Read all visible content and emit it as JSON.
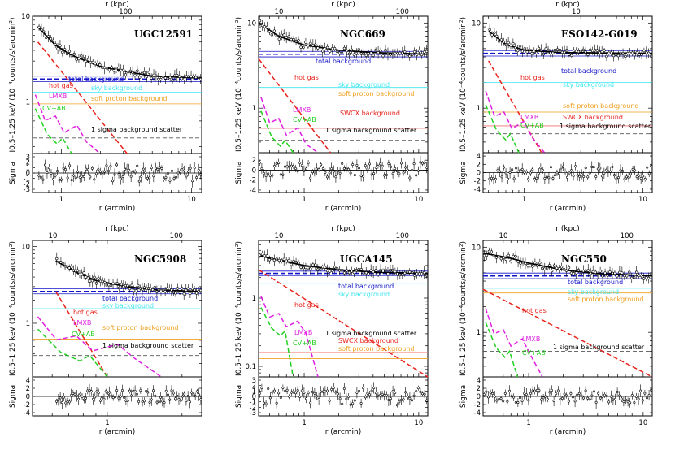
{
  "chart_data": [
    {
      "type": "scatter",
      "title": "UGC12591",
      "xlabel": "r (arcmin)",
      "top_xlabel": "r (kpc)",
      "ylabel": "I_{0.5-1.25 keV} (10^{-4} counts/s/arcmin^2)",
      "ylabel_display": "I0.5–1.25 keV (10⁻⁴counts/s/arcmin²)",
      "residual_ylabel": "Sigma",
      "xlim": [
        0.6,
        12
      ],
      "ylim": [
        0.25,
        10
      ],
      "x_ticks": [
        "1",
        "10"
      ],
      "y_ticks": [
        "10",
        "1"
      ],
      "top_ticks": [
        "100"
      ],
      "residual_ticks": [
        "3",
        "2",
        "1",
        "0",
        "-1",
        "-2",
        "-3"
      ],
      "residual_ylim": [
        -3.6,
        3.6
      ],
      "background_level": 1.85,
      "labels": {
        "total_background": "total background",
        "sky_background": "sky background",
        "soft_proton_background": "soft proton background",
        "hot_gas": "hot gas",
        "lmxb": "LMXB",
        "cv_ab": "CV+AB",
        "scatter": "1 sigma background scatter"
      },
      "components": {
        "total_background": 1.85,
        "sky_background": 1.3,
        "soft_proton_background": 0.95,
        "sigma_scatter": 0.38,
        "hot_gas": [
          [
            0.66,
            5.0
          ],
          [
            3.2,
            0.25
          ]
        ],
        "model_curve": [
          [
            0.66,
            7.5
          ],
          [
            0.9,
            4.6
          ],
          [
            1.2,
            3.5
          ],
          [
            2,
            2.6
          ],
          [
            3,
            2.3
          ],
          [
            5,
            2.0
          ],
          [
            12,
            1.9
          ]
        ]
      }
    },
    {
      "type": "scatter",
      "title": "NGC669",
      "xlabel": "r (arcmin)",
      "top_xlabel": "r (kpc)",
      "ylabel": "I_{0.5-1.25 keV} (10^{-4} counts/s/arcmin^2)",
      "ylabel_display": "I0.5–1.25 keV (10⁻⁴counts/s/arcmin²)",
      "residual_ylabel": "Sigma",
      "xlim": [
        0.4,
        12
      ],
      "ylim": [
        0.3,
        12
      ],
      "x_ticks": [
        "1",
        "10"
      ],
      "y_ticks": [
        "10",
        "1"
      ],
      "top_ticks": [
        "10",
        "100"
      ],
      "residual_ticks": [
        "2",
        "0",
        "-2",
        "-4"
      ],
      "residual_ylim": [
        -4.5,
        3.5
      ],
      "background_level": 4.3,
      "labels": {
        "total_background": "total background",
        "sky_background": "sky background",
        "soft_proton_background": "soft proton background",
        "hot_gas": "hot gas",
        "lmxb": "LMXB",
        "cv_ab": "CV+AB",
        "swcx_background": "SWCX background",
        "scatter": "1 sigma background scatter"
      },
      "components": {
        "total_background": 4.3,
        "sky_background": 1.75,
        "soft_proton_background": 1.35,
        "swcx_background": 0.58,
        "sigma_scatter": 0.42,
        "hot_gas": [
          [
            0.4,
            3.8
          ],
          [
            1.7,
            0.3
          ]
        ],
        "model_curve": [
          [
            0.4,
            10
          ],
          [
            0.6,
            7
          ],
          [
            1,
            5.5
          ],
          [
            2,
            4.8
          ],
          [
            4,
            4.5
          ],
          [
            12,
            4.3
          ]
        ]
      }
    },
    {
      "type": "scatter",
      "title": "ESO142-G019",
      "xlabel": "r (arcmin)",
      "top_xlabel": "r (kpc)",
      "ylabel": "I_{0.5-1.25 keV} (10^{-4} counts/s/arcmin^2)",
      "ylabel_display": "I0.5–1.25 keV (10⁻⁴counts/s/arcmin²)",
      "residual_ylabel": "Sigma",
      "xlim": [
        0.45,
        12
      ],
      "ylim": [
        0.3,
        12
      ],
      "x_ticks": [
        "1",
        "10"
      ],
      "y_ticks": [
        "10",
        "1"
      ],
      "top_ticks": [
        "10"
      ],
      "residual_ticks": [
        "4",
        "2",
        "0",
        "-2",
        "-4"
      ],
      "residual_ylim": [
        -4.8,
        4.8
      ],
      "background_level": 4.4,
      "labels": {
        "total_background": "total background",
        "sky_background": "sky background",
        "soft_proton_background": "soft proton background",
        "hot_gas": "hot gas",
        "lmxb": "LMXB",
        "cv_ab": "CV+AB",
        "swcx_background": "SWCX background",
        "scatter": "1 sigma background scatter"
      },
      "components": {
        "total_background": 4.4,
        "sky_background": 2.0,
        "soft_proton_background": 0.9,
        "swcx_background": 0.62,
        "sigma_scatter": 0.5,
        "hot_gas": [
          [
            0.5,
            3.6
          ],
          [
            1.4,
            0.3
          ]
        ],
        "model_curve": [
          [
            0.5,
            8
          ],
          [
            0.7,
            5.6
          ],
          [
            1,
            4.8
          ],
          [
            2,
            4.5
          ],
          [
            12,
            4.4
          ]
        ]
      }
    },
    {
      "type": "scatter",
      "title": "NGC5908",
      "xlabel": "r (arcmin)",
      "top_xlabel": "r (kpc)",
      "ylabel": "I_{0.5-1.25 keV} (10^{-4} counts/s/arcmin^2)",
      "ylabel_display": "I0.5–1.25 keV (10⁻⁴counts/s/arcmin²)",
      "residual_ylabel": "Sigma",
      "xlim": [
        0.5,
        2.4
      ],
      "ylim": [
        0.2,
        12
      ],
      "x_ticks": [
        "1"
      ],
      "y_ticks": [
        "10",
        "1"
      ],
      "top_ticks": [
        "10",
        "100"
      ],
      "residual_ticks": [
        "4",
        "2",
        "0",
        "-2",
        "-4"
      ],
      "residual_ylim": [
        -4.8,
        4.8
      ],
      "background_level": 2.6,
      "labels": {
        "total_background": "total background",
        "sky_background": "sky background",
        "soft_proton_background": "soft proton background",
        "hot_gas": "hot gas",
        "lmxb": "LMXB",
        "cv_ab": "CV+AB",
        "scatter": "1 sigma background scatter"
      },
      "components": {
        "total_background": 2.6,
        "sky_background": 1.55,
        "soft_proton_background": 0.62,
        "sigma_scatter": 0.38,
        "hot_gas": [
          [
            0.62,
            2.6
          ],
          [
            1.0,
            0.2
          ]
        ],
        "model_curve": [
          [
            0.62,
            6.5
          ],
          [
            0.75,
            4.6
          ],
          [
            0.9,
            3.6
          ],
          [
            1.2,
            3.0
          ],
          [
            1.6,
            2.7
          ],
          [
            2.4,
            2.6
          ]
        ]
      }
    },
    {
      "type": "scatter",
      "title": "UGCA145",
      "xlabel": "r (arcmin)",
      "top_xlabel": "r (kpc)",
      "ylabel": "I_{0.5-1.25 keV} (10^{-4} counts/s/arcmin^2)",
      "ylabel_display": "I0.5–1.25 keV (10⁻⁴counts/s/arcmin²)",
      "residual_ylabel": "Sigma",
      "xlim": [
        0.4,
        12
      ],
      "ylim": [
        0.07,
        7
      ],
      "x_ticks": [
        "1",
        "10"
      ],
      "y_ticks": [
        "1",
        "0.1"
      ],
      "top_ticks": [
        "10",
        "100"
      ],
      "residual_ticks": [
        "3",
        "2",
        "1",
        "0",
        "-1",
        "-2",
        "-3"
      ],
      "residual_ylim": [
        -3.6,
        3.6
      ],
      "background_level": 2.3,
      "labels": {
        "total_background": "total background",
        "sky_background": "sky background",
        "soft_proton_background": "soft proton background",
        "hot_gas": "hot gas",
        "lmxb": "LMXB",
        "cv_ab": "CV+AB",
        "swcx_background": "SWCX background",
        "scatter": "1 sigma background scatter"
      },
      "components": {
        "total_background": 2.3,
        "sky_background": 1.65,
        "soft_proton_background": 0.13,
        "swcx_background": 0.16,
        "sigma_scatter": 0.33,
        "hot_gas": [
          [
            0.4,
            2.6
          ],
          [
            12,
            0.07
          ]
        ],
        "model_curve": [
          [
            0.4,
            4.2
          ],
          [
            0.6,
            3.6
          ],
          [
            1,
            3.0
          ],
          [
            2,
            2.6
          ],
          [
            4,
            2.4
          ],
          [
            12,
            2.3
          ]
        ]
      }
    },
    {
      "type": "scatter",
      "title": "NGC550",
      "xlabel": "r (arcmin)",
      "top_xlabel": "r (kpc)",
      "ylabel": "I_{0.5-1.25 keV} (10^{-4} counts/s/arcmin^2)",
      "ylabel_display": "I0.5–1.25 keV (10⁻⁴counts/s/arcmin²)",
      "residual_ylabel": "Sigma",
      "xlim": [
        0.4,
        12
      ],
      "ylim": [
        0.3,
        12
      ],
      "x_ticks": [
        "1",
        "10"
      ],
      "y_ticks": [
        "10",
        "1"
      ],
      "top_ticks": [
        "10",
        "100"
      ],
      "residual_ticks": [
        "4",
        "2",
        "0",
        "-2",
        "-4"
      ],
      "residual_ylim": [
        -4.8,
        4.8
      ],
      "background_level": 4.6,
      "labels": {
        "total_background": "total background",
        "sky_background": "sky background",
        "soft_proton_background": "soft proton background",
        "hot_gas": "hot gas",
        "lmxb": "LMXB",
        "cv_ab": "CV+AB",
        "scatter": "1 sigma background scatter"
      },
      "components": {
        "total_background": 4.6,
        "sky_background": 3.3,
        "soft_proton_background": 2.9,
        "sigma_scatter": 0.6,
        "hot_gas": [
          [
            0.4,
            3.2
          ],
          [
            12,
            0.3
          ]
        ],
        "model_curve": [
          [
            0.4,
            8.5
          ],
          [
            0.7,
            7.4
          ],
          [
            1,
            6.5
          ],
          [
            2,
            5.4
          ],
          [
            4,
            4.9
          ],
          [
            12,
            4.6
          ]
        ]
      }
    }
  ],
  "colors": {
    "hot_gas": "#e8231c",
    "lmxb": "#e020e0",
    "cv_ab": "#22d11f",
    "total_background": "#1414c8",
    "sky_background": "#3fe6f0",
    "soft_proton_background": "#f0a020",
    "swcx_background": "#f07070",
    "scatter": "#555555"
  }
}
